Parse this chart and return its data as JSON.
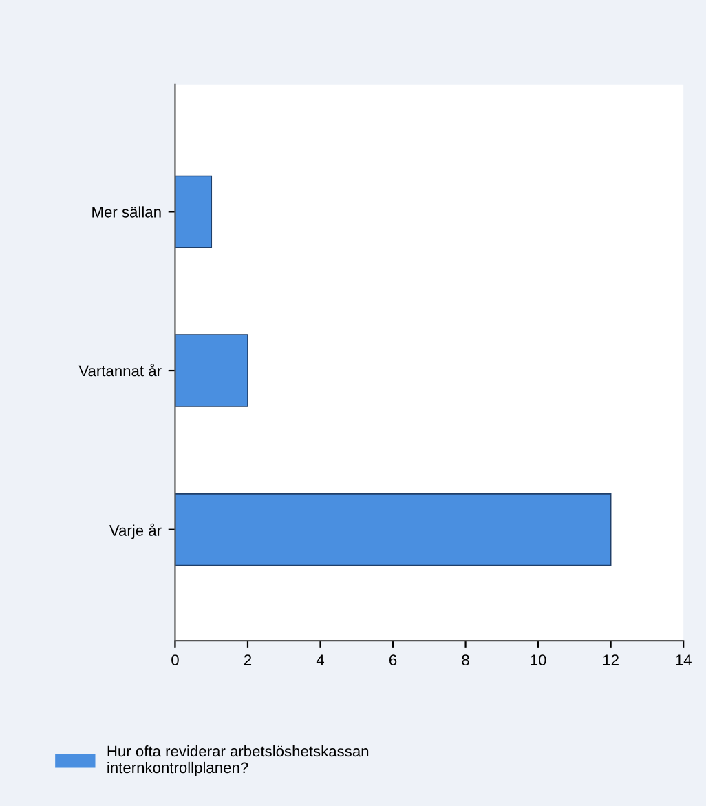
{
  "chart_data": {
    "type": "bar",
    "orientation": "horizontal",
    "categories": [
      "Mer sällan",
      "Vartannat år",
      "Varje år"
    ],
    "series": [
      {
        "name": "Hur ofta reviderar arbetslöshetskassan internkontrollplanen?",
        "color": "#4a8fe0",
        "values": [
          1,
          2,
          12
        ]
      }
    ],
    "xlim": [
      0,
      14
    ],
    "xticks": [
      0,
      2,
      4,
      6,
      8,
      10,
      12,
      14
    ],
    "grid": false,
    "legend": "bottom"
  }
}
